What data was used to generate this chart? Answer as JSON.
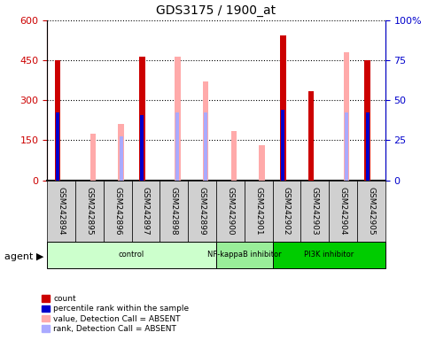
{
  "title": "GDS3175 / 1900_at",
  "samples": [
    "GSM242894",
    "GSM242895",
    "GSM242896",
    "GSM242897",
    "GSM242898",
    "GSM242899",
    "GSM242900",
    "GSM242901",
    "GSM242902",
    "GSM242903",
    "GSM242904",
    "GSM242905"
  ],
  "count_values": [
    450,
    0,
    0,
    465,
    0,
    0,
    0,
    0,
    545,
    335,
    0,
    450
  ],
  "rank_values": [
    255,
    0,
    0,
    245,
    0,
    0,
    0,
    0,
    265,
    0,
    0,
    255
  ],
  "absent_value_values": [
    0,
    175,
    210,
    0,
    465,
    370,
    185,
    130,
    0,
    0,
    480,
    0
  ],
  "absent_rank_values": [
    0,
    0,
    165,
    0,
    255,
    255,
    0,
    0,
    0,
    0,
    255,
    0
  ],
  "ylim_left": [
    0,
    600
  ],
  "yticks_left": [
    0,
    150,
    300,
    450,
    600
  ],
  "ylim_right": [
    0,
    100
  ],
  "yticks_right": [
    0,
    25,
    50,
    75,
    100
  ],
  "groups": [
    {
      "label": "control",
      "start": 0,
      "end": 6,
      "color": "#ccffcc"
    },
    {
      "label": "NF-kappaB inhibitor",
      "start": 6,
      "end": 8,
      "color": "#99ee99"
    },
    {
      "label": "PI3K inhibitor",
      "start": 8,
      "end": 12,
      "color": "#00cc00"
    }
  ],
  "count_color": "#cc0000",
  "rank_color": "#0000cc",
  "absent_value_color": "#ffaaaa",
  "absent_rank_color": "#aaaaff",
  "bg_color": "#d0d0d0",
  "left_tick_color": "#cc0000",
  "right_tick_color": "#0000cc",
  "bar_width": 0.3
}
